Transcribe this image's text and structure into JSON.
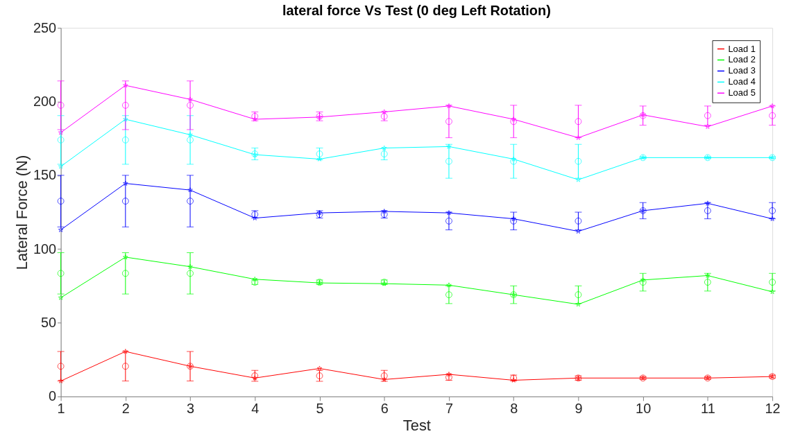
{
  "chart_data": {
    "type": "line",
    "title": "lateral force Vs Test (0 deg Left Rotation)",
    "xlabel": "Test",
    "ylabel": "Lateral Force (N)",
    "x": [
      1,
      2,
      3,
      4,
      5,
      6,
      7,
      8,
      9,
      10,
      11,
      12
    ],
    "xlim": [
      1,
      12
    ],
    "xticks": [
      1,
      2,
      3,
      4,
      5,
      6,
      7,
      8,
      9,
      10,
      11,
      12
    ],
    "ylim": [
      0,
      250
    ],
    "yticks": [
      0,
      50,
      100,
      150,
      200,
      250
    ],
    "grid": false,
    "legend": "top right",
    "line_style": "solid",
    "series": [
      {
        "name": "Load 1",
        "marker": "star",
        "color": "#ff0000",
        "values": [
          10.5,
          30.5,
          20.5,
          12.5,
          19,
          11.5,
          15,
          11,
          12.5,
          12.5,
          12.5,
          13.5
        ]
      },
      {
        "name": "Load 2",
        "marker": "star",
        "color": "#00ff00",
        "values": [
          67,
          94.5,
          88,
          79.5,
          77,
          76.5,
          75.5,
          69,
          62.5,
          79,
          82,
          71
        ]
      },
      {
        "name": "Load 3",
        "marker": "star",
        "color": "#0000ff",
        "values": [
          113,
          144.5,
          140,
          121,
          124.5,
          125.5,
          124.5,
          120.5,
          112,
          126,
          131,
          120.5
        ]
      },
      {
        "name": "Load 4",
        "marker": "star",
        "color": "#00ffff",
        "values": [
          156,
          188,
          177.5,
          164,
          161,
          168.5,
          169.5,
          161,
          147,
          162,
          162,
          162
        ]
      },
      {
        "name": "Load 5",
        "marker": "star",
        "color": "#ff00ff",
        "values": [
          179,
          211,
          201.5,
          188,
          189.5,
          193,
          197,
          188,
          175.5,
          191,
          183,
          197
        ]
      },
      {
        "type": "scatter",
        "marker": "circle",
        "color": "#ff0000",
        "values": [
          20.5,
          20.5,
          20.5,
          14,
          14,
          14,
          13,
          12.5,
          12.5,
          12.5,
          12.5,
          13.5
        ],
        "errors": [
          10,
          10,
          10,
          3.7,
          3.7,
          3.7,
          2,
          2,
          1.5,
          1,
          1,
          1
        ]
      },
      {
        "type": "scatter",
        "marker": "circle",
        "color": "#00ff00",
        "values": [
          83.5,
          83.5,
          83.5,
          77.5,
          77.5,
          77.5,
          69,
          69,
          69,
          77.5,
          77.5,
          77.5
        ],
        "errors": [
          14,
          14,
          14,
          1.5,
          1.5,
          1.5,
          6,
          6,
          6,
          6,
          6,
          6
        ]
      },
      {
        "type": "scatter",
        "marker": "circle",
        "color": "#0000ff",
        "values": [
          132.5,
          132.5,
          132.5,
          123.5,
          123.5,
          123.5,
          119,
          119,
          119,
          126,
          126,
          126
        ],
        "errors": [
          17.5,
          17.5,
          17.5,
          2.5,
          2.5,
          2.5,
          6,
          6,
          6,
          5.5,
          5.5,
          5.5
        ]
      },
      {
        "type": "scatter",
        "marker": "circle",
        "color": "#00ffff",
        "values": [
          174,
          174,
          174,
          164.5,
          164.5,
          164.5,
          159.5,
          159.5,
          159.5,
          162,
          162,
          162
        ],
        "errors": [
          16.5,
          16.5,
          16.5,
          4,
          4,
          4,
          11.5,
          11.5,
          11.5,
          0.5,
          0.5,
          0.5
        ]
      },
      {
        "type": "scatter",
        "marker": "circle",
        "color": "#ff00ff",
        "values": [
          197.5,
          197.5,
          197.5,
          190,
          190,
          190,
          186.5,
          186.5,
          186.5,
          190.5,
          190.5,
          190.5
        ],
        "errors": [
          16.5,
          16.5,
          16.5,
          3,
          3,
          3,
          11,
          11,
          11,
          6.5,
          6.5,
          6.5
        ]
      }
    ]
  }
}
